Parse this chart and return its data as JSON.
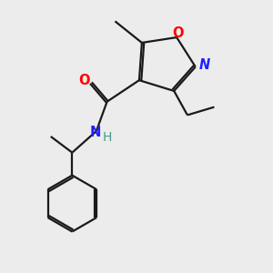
{
  "bg_color": "#ececec",
  "bond_color": "#1a1a1a",
  "N_color": "#2020ff",
  "O_color": "#ff0000",
  "H_color": "#4a9a8a",
  "line_width": 1.6,
  "figsize": [
    3.0,
    3.0
  ],
  "dpi": 100,
  "xlim": [
    0,
    10
  ],
  "ylim": [
    0,
    10
  ]
}
